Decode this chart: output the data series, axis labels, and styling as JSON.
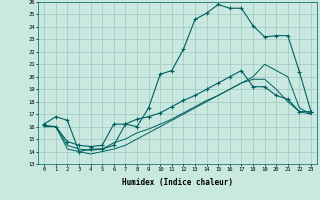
{
  "xlabel": "Humidex (Indice chaleur)",
  "bg_color": "#c8e8e0",
  "line_color": "#006060",
  "grid_color": "#a0c8c0",
  "xlim": [
    -0.5,
    23.5
  ],
  "ylim": [
    13,
    26
  ],
  "xticks": [
    0,
    1,
    2,
    3,
    4,
    5,
    6,
    7,
    8,
    9,
    10,
    11,
    12,
    13,
    14,
    15,
    16,
    17,
    18,
    19,
    20,
    21,
    22,
    23
  ],
  "yticks": [
    13,
    14,
    15,
    16,
    17,
    18,
    19,
    20,
    21,
    22,
    23,
    24,
    25,
    26
  ],
  "series1_x": [
    0,
    1,
    2,
    3,
    4,
    5,
    6,
    7,
    8,
    9,
    10,
    11,
    12,
    13,
    14,
    15,
    16,
    17,
    18,
    19,
    20,
    21,
    22,
    23
  ],
  "series1_y": [
    16.2,
    16.8,
    16.5,
    14.0,
    14.2,
    14.2,
    14.5,
    16.2,
    16.0,
    17.5,
    20.2,
    20.5,
    22.2,
    24.6,
    25.1,
    25.8,
    25.5,
    25.5,
    24.1,
    23.2,
    23.3,
    23.3,
    20.4,
    17.2
  ],
  "series2_x": [
    0,
    1,
    2,
    3,
    4,
    5,
    6,
    7,
    8,
    9,
    10,
    11,
    12,
    13,
    14,
    15,
    16,
    17,
    18,
    19,
    20,
    21,
    22,
    23
  ],
  "series2_y": [
    16.1,
    16.0,
    14.8,
    14.5,
    14.4,
    14.5,
    16.2,
    16.2,
    16.6,
    16.8,
    17.1,
    17.6,
    18.1,
    18.5,
    19.0,
    19.5,
    20.0,
    20.5,
    19.2,
    19.2,
    18.5,
    18.2,
    17.2,
    17.2
  ],
  "series3_x": [
    0,
    1,
    2,
    3,
    4,
    5,
    6,
    7,
    8,
    9,
    10,
    11,
    12,
    13,
    14,
    15,
    16,
    17,
    18,
    19,
    20,
    21,
    22,
    23
  ],
  "series3_y": [
    16.0,
    16.0,
    14.5,
    14.2,
    14.1,
    14.2,
    14.7,
    15.0,
    15.5,
    15.8,
    16.2,
    16.6,
    17.1,
    17.6,
    18.1,
    18.5,
    19.0,
    19.5,
    19.8,
    19.8,
    19.0,
    18.0,
    17.2,
    17.0
  ],
  "series4_x": [
    0,
    1,
    2,
    3,
    4,
    5,
    6,
    7,
    8,
    9,
    10,
    11,
    12,
    13,
    14,
    15,
    16,
    17,
    18,
    19,
    20,
    21,
    22,
    23
  ],
  "series4_y": [
    16.0,
    16.0,
    14.2,
    14.0,
    13.8,
    14.0,
    14.2,
    14.5,
    15.0,
    15.5,
    16.0,
    16.5,
    17.0,
    17.5,
    18.0,
    18.5,
    19.0,
    19.5,
    20.0,
    21.0,
    20.5,
    20.0,
    17.5,
    17.0
  ]
}
